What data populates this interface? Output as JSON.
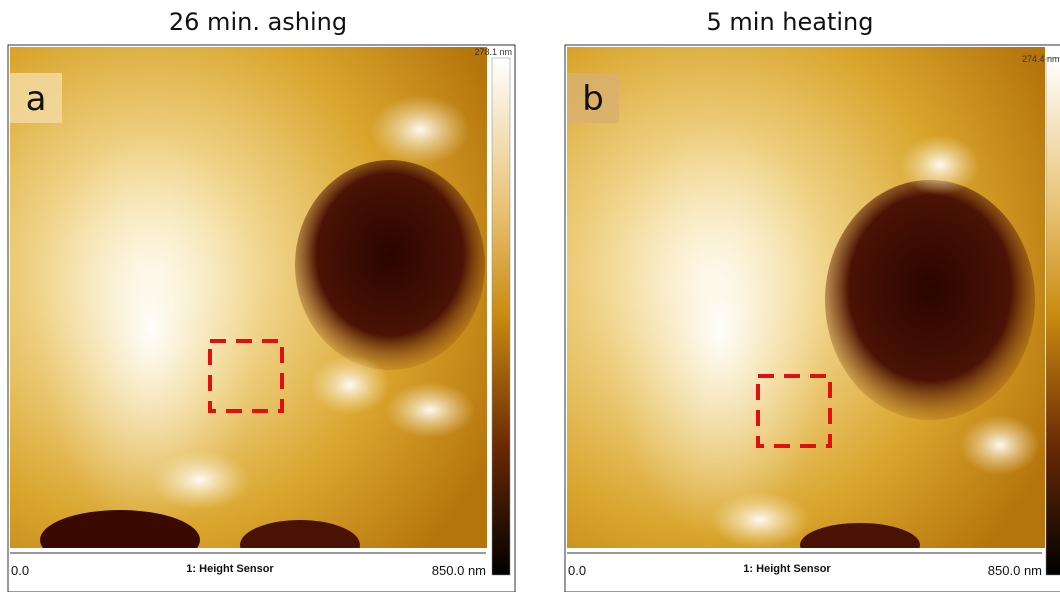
{
  "panels": [
    {
      "title": "26 min. ashing",
      "label": "a",
      "scale_max": "278.1 nm",
      "axis_start": "0.0",
      "channel": "1: Height Sensor",
      "axis_end": "850.0 nm"
    },
    {
      "title": "5 min heating",
      "label": "b",
      "scale_max": "274.4 nm",
      "axis_start": "0.0",
      "channel": "1: Height Sensor",
      "axis_end": "850.0 nm"
    }
  ]
}
